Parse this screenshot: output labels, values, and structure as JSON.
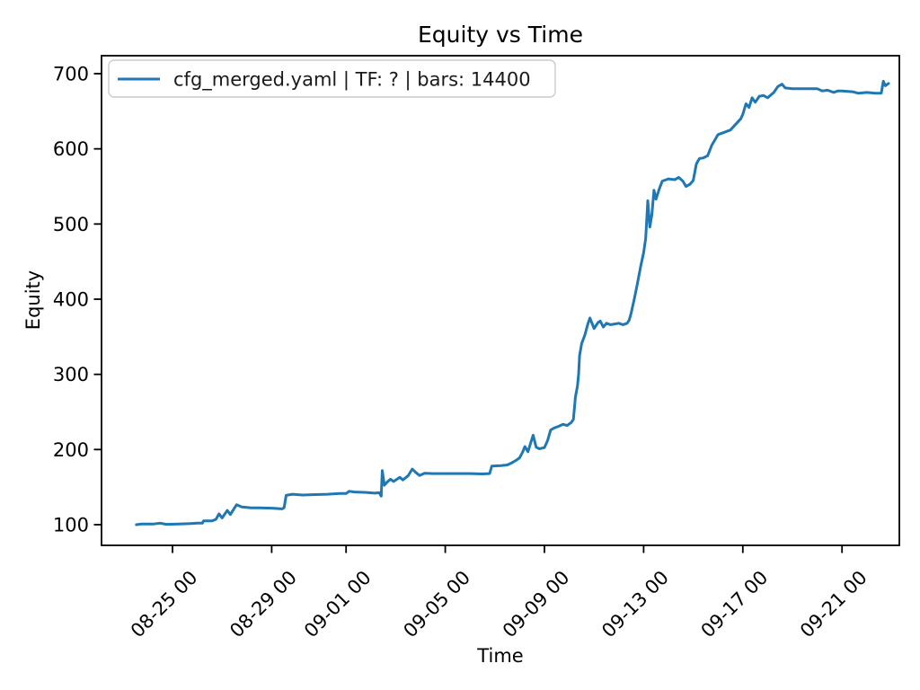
{
  "chart_data": {
    "type": "line",
    "title": "Equity vs Time",
    "xlabel": "Time",
    "ylabel": "Equity",
    "grid": false,
    "legend_position": "upper left",
    "line_color": "#1f77b4",
    "background_color": "#ffffff",
    "legend_border_color": "#cccccc",
    "yticks": [
      100,
      200,
      300,
      400,
      500,
      600,
      700
    ],
    "ylim": [
      70,
      720
    ],
    "xticks": [
      "08-25 00",
      "08-29 00",
      "09-01 00",
      "09-05 00",
      "09-09 00",
      "09-13 00",
      "09-17 00",
      "09-21 00"
    ],
    "series": [
      {
        "name": "cfg_merged.yaml | TF: ? | bars: 14400",
        "points": [
          [
            "08-23 13",
            100
          ],
          [
            "08-23 18",
            101
          ],
          [
            "08-24 06",
            101
          ],
          [
            "08-24 12",
            102
          ],
          [
            "08-24 18",
            100.5
          ],
          [
            "08-25 06",
            101
          ],
          [
            "08-25 18",
            101.5
          ],
          [
            "08-26 00",
            102
          ],
          [
            "08-26 05",
            102
          ],
          [
            "08-26 06",
            105
          ],
          [
            "08-26 14",
            105
          ],
          [
            "08-26 18",
            107
          ],
          [
            "08-26 21",
            114.5
          ],
          [
            "08-27 00",
            109
          ],
          [
            "08-27 05",
            119
          ],
          [
            "08-27 08",
            113.5
          ],
          [
            "08-27 14",
            126.5
          ],
          [
            "08-27 19",
            123.5
          ],
          [
            "08-28 04",
            122.5
          ],
          [
            "08-28 12",
            122.5
          ],
          [
            "08-29 00",
            122
          ],
          [
            "08-29 10",
            121
          ],
          [
            "08-29 12",
            122.5
          ],
          [
            "08-29 14",
            139
          ],
          [
            "08-29 20",
            140.5
          ],
          [
            "08-30 06",
            139.5
          ],
          [
            "08-30 18",
            140
          ],
          [
            "08-31 06",
            140.5
          ],
          [
            "08-31 18",
            141.5
          ],
          [
            "09-01 00",
            141.5
          ],
          [
            "09-01 03",
            144.5
          ],
          [
            "09-01 08",
            143.5
          ],
          [
            "09-01 18",
            143
          ],
          [
            "09-02 04",
            142
          ],
          [
            "09-02 08",
            142.5
          ],
          [
            "09-02 10",
            138
          ],
          [
            "09-02 11",
            172
          ],
          [
            "09-02 13",
            152.5
          ],
          [
            "09-02 16",
            157
          ],
          [
            "09-02 19",
            160.5
          ],
          [
            "09-02 22",
            157.5
          ],
          [
            "09-03 04",
            163
          ],
          [
            "09-03 07",
            159.5
          ],
          [
            "09-03 12",
            165
          ],
          [
            "09-03 16",
            174
          ],
          [
            "09-03 20",
            169
          ],
          [
            "09-03 23",
            165.5
          ],
          [
            "09-04 04",
            168.5
          ],
          [
            "09-04 12",
            168
          ],
          [
            "09-05 00",
            168
          ],
          [
            "09-05 12",
            168
          ],
          [
            "09-06 00",
            168
          ],
          [
            "09-06 12",
            167.5
          ],
          [
            "09-06 19",
            168
          ],
          [
            "09-06 21",
            178
          ],
          [
            "09-07 06",
            178.5
          ],
          [
            "09-07 12",
            179.5
          ],
          [
            "09-07 16",
            182
          ],
          [
            "09-07 21",
            186
          ],
          [
            "09-08 00",
            189
          ],
          [
            "09-08 03",
            197
          ],
          [
            "09-08 05",
            204
          ],
          [
            "09-08 08",
            197
          ],
          [
            "09-08 11",
            210
          ],
          [
            "09-08 13",
            219
          ],
          [
            "09-08 16",
            203
          ],
          [
            "09-08 19",
            201
          ],
          [
            "09-09 00",
            202.5
          ],
          [
            "09-09 03",
            212
          ],
          [
            "09-09 06",
            226
          ],
          [
            "09-09 10",
            229
          ],
          [
            "09-09 14",
            231
          ],
          [
            "09-09 18",
            233.5
          ],
          [
            "09-09 22",
            232
          ],
          [
            "09-10 02",
            236
          ],
          [
            "09-10 04",
            240
          ],
          [
            "09-10 06",
            270
          ],
          [
            "09-10 08",
            285
          ],
          [
            "09-10 09",
            300
          ],
          [
            "09-10 10",
            325
          ],
          [
            "09-10 12",
            341
          ],
          [
            "09-10 15",
            352
          ],
          [
            "09-10 18",
            367
          ],
          [
            "09-10 20",
            375
          ],
          [
            "09-11 00",
            361
          ],
          [
            "09-11 04",
            369
          ],
          [
            "09-11 06",
            371
          ],
          [
            "09-11 09",
            363
          ],
          [
            "09-11 12",
            368
          ],
          [
            "09-11 16",
            366
          ],
          [
            "09-11 20",
            367
          ],
          [
            "09-12 00",
            368
          ],
          [
            "09-12 04",
            366
          ],
          [
            "09-12 08",
            368
          ],
          [
            "09-12 10",
            372
          ],
          [
            "09-12 12",
            382
          ],
          [
            "09-12 15",
            401
          ],
          [
            "09-12 18",
            421
          ],
          [
            "09-12 21",
            443
          ],
          [
            "09-13 00",
            462
          ],
          [
            "09-13 02",
            481
          ],
          [
            "09-13 04",
            531
          ],
          [
            "09-13 06",
            496
          ],
          [
            "09-13 08",
            513
          ],
          [
            "09-13 10",
            545
          ],
          [
            "09-13 12",
            533
          ],
          [
            "09-13 15",
            546
          ],
          [
            "09-13 18",
            557
          ],
          [
            "09-14 00",
            560
          ],
          [
            "09-14 06",
            559
          ],
          [
            "09-14 10",
            562
          ],
          [
            "09-14 14",
            557
          ],
          [
            "09-14 17",
            550
          ],
          [
            "09-14 21",
            553
          ],
          [
            "09-15 00",
            558
          ],
          [
            "09-15 03",
            580
          ],
          [
            "09-15 06",
            587
          ],
          [
            "09-15 10",
            588
          ],
          [
            "09-15 14",
            591
          ],
          [
            "09-15 18",
            605
          ],
          [
            "09-15 21",
            612
          ],
          [
            "09-16 00",
            619
          ],
          [
            "09-16 06",
            622
          ],
          [
            "09-16 12",
            625
          ],
          [
            "09-16 18",
            634
          ],
          [
            "09-16 22",
            640
          ],
          [
            "09-17 00",
            646
          ],
          [
            "09-17 03",
            660
          ],
          [
            "09-17 06",
            655
          ],
          [
            "09-17 09",
            668
          ],
          [
            "09-17 12",
            662
          ],
          [
            "09-17 16",
            670
          ],
          [
            "09-17 20",
            671
          ],
          [
            "09-18 00",
            668
          ],
          [
            "09-18 06",
            675
          ],
          [
            "09-18 10",
            683
          ],
          [
            "09-18 14",
            686
          ],
          [
            "09-18 17",
            681
          ],
          [
            "09-19 00",
            680
          ],
          [
            "09-19 12",
            680
          ],
          [
            "09-20 00",
            680
          ],
          [
            "09-20 05",
            677
          ],
          [
            "09-20 10",
            678
          ],
          [
            "09-20 16",
            675
          ],
          [
            "09-20 20",
            677
          ],
          [
            "09-21 00",
            677
          ],
          [
            "09-21 10",
            676
          ],
          [
            "09-21 16",
            674
          ],
          [
            "09-22 00",
            675
          ],
          [
            "09-22 08",
            674
          ],
          [
            "09-22 14",
            674
          ],
          [
            "09-22 16",
            690
          ],
          [
            "09-22 18",
            684
          ],
          [
            "09-22 21",
            687
          ]
        ]
      }
    ]
  }
}
